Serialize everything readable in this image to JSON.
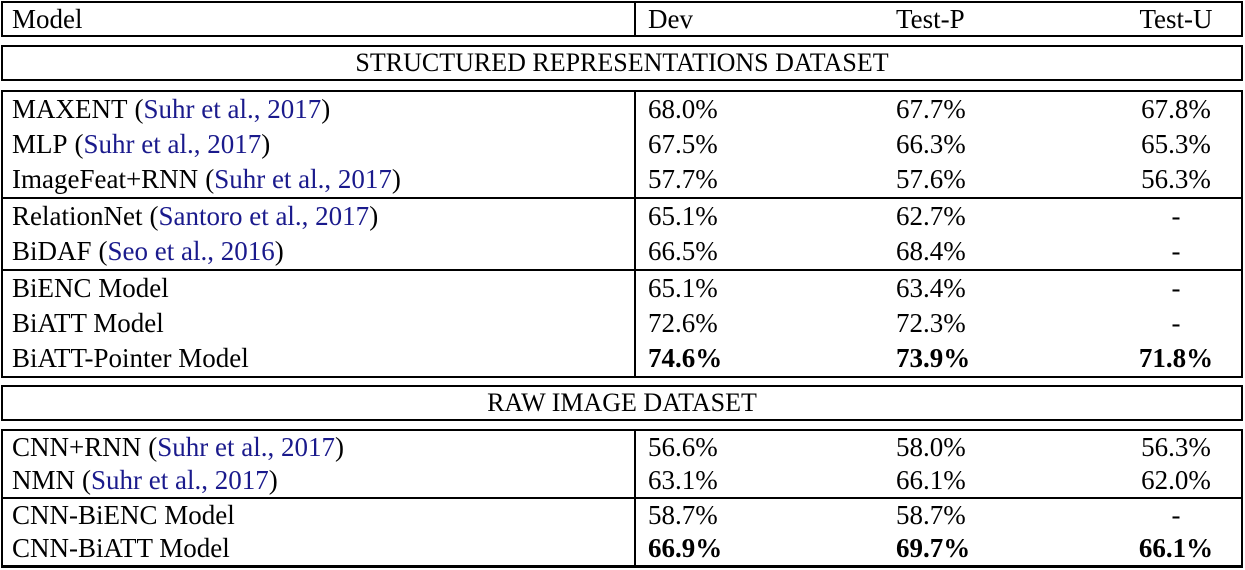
{
  "colors": {
    "citation_blue": "#1A1A8C",
    "text": "#000000",
    "border": "#000000",
    "background": "#ffffff"
  },
  "punctuation": {
    "open_paren": "(",
    "close_paren": ")"
  },
  "header": {
    "columns": [
      "Model",
      "Dev",
      "Test-P",
      "Test-U"
    ]
  },
  "sections": [
    {
      "title": "STRUCTURED REPRESENTATIONS DATASET",
      "groups": [
        {
          "rows": [
            {
              "model": "MAXENT",
              "citation": "Suhr et al., 2017",
              "dev": "68.0%",
              "test_p": "67.7%",
              "test_u": "67.8%",
              "bold_values": false
            },
            {
              "model": "MLP",
              "citation": "Suhr et al., 2017",
              "dev": "67.5%",
              "test_p": "66.3%",
              "test_u": "65.3%",
              "bold_values": false
            },
            {
              "model": "ImageFeat+RNN",
              "citation": "Suhr et al., 2017",
              "dev": "57.7%",
              "test_p": "57.6%",
              "test_u": "56.3%",
              "bold_values": false
            }
          ]
        },
        {
          "rows": [
            {
              "model": "RelationNet",
              "citation": "Santoro et al., 2017",
              "dev": "65.1%",
              "test_p": "62.7%",
              "test_u": "-",
              "bold_values": false
            },
            {
              "model": "BiDAF",
              "citation": "Seo et al., 2016",
              "dev": "66.5%",
              "test_p": "68.4%",
              "test_u": "-",
              "bold_values": false
            }
          ]
        },
        {
          "rows": [
            {
              "model": "BiENC Model",
              "citation": "",
              "dev": "65.1%",
              "test_p": "63.4%",
              "test_u": "-",
              "bold_values": false
            },
            {
              "model": "BiATT Model",
              "citation": "",
              "dev": "72.6%",
              "test_p": "72.3%",
              "test_u": "-",
              "bold_values": false
            },
            {
              "model": "BiATT-Pointer Model",
              "citation": "",
              "dev": "74.6%",
              "test_p": "73.9%",
              "test_u": "71.8%",
              "bold_values": true
            }
          ]
        }
      ]
    },
    {
      "title": "RAW IMAGE DATASET",
      "groups": [
        {
          "rows": [
            {
              "model": "CNN+RNN",
              "citation": "Suhr et al., 2017",
              "dev": "56.6%",
              "test_p": "58.0%",
              "test_u": "56.3%",
              "bold_values": false
            },
            {
              "model": "NMN",
              "citation": "Suhr et al., 2017",
              "dev": "63.1%",
              "test_p": "66.1%",
              "test_u": "62.0%",
              "bold_values": false
            }
          ]
        },
        {
          "rows": [
            {
              "model": "CNN-BiENC Model",
              "citation": "",
              "dev": "58.7%",
              "test_p": "58.7%",
              "test_u": "-",
              "bold_values": false
            },
            {
              "model": "CNN-BiATT Model",
              "citation": "",
              "dev": "66.9%",
              "test_p": "69.7%",
              "test_u": "66.1%",
              "bold_values": true
            }
          ]
        }
      ]
    }
  ],
  "layout_gaps": [
    8,
    9,
    7,
    8
  ]
}
